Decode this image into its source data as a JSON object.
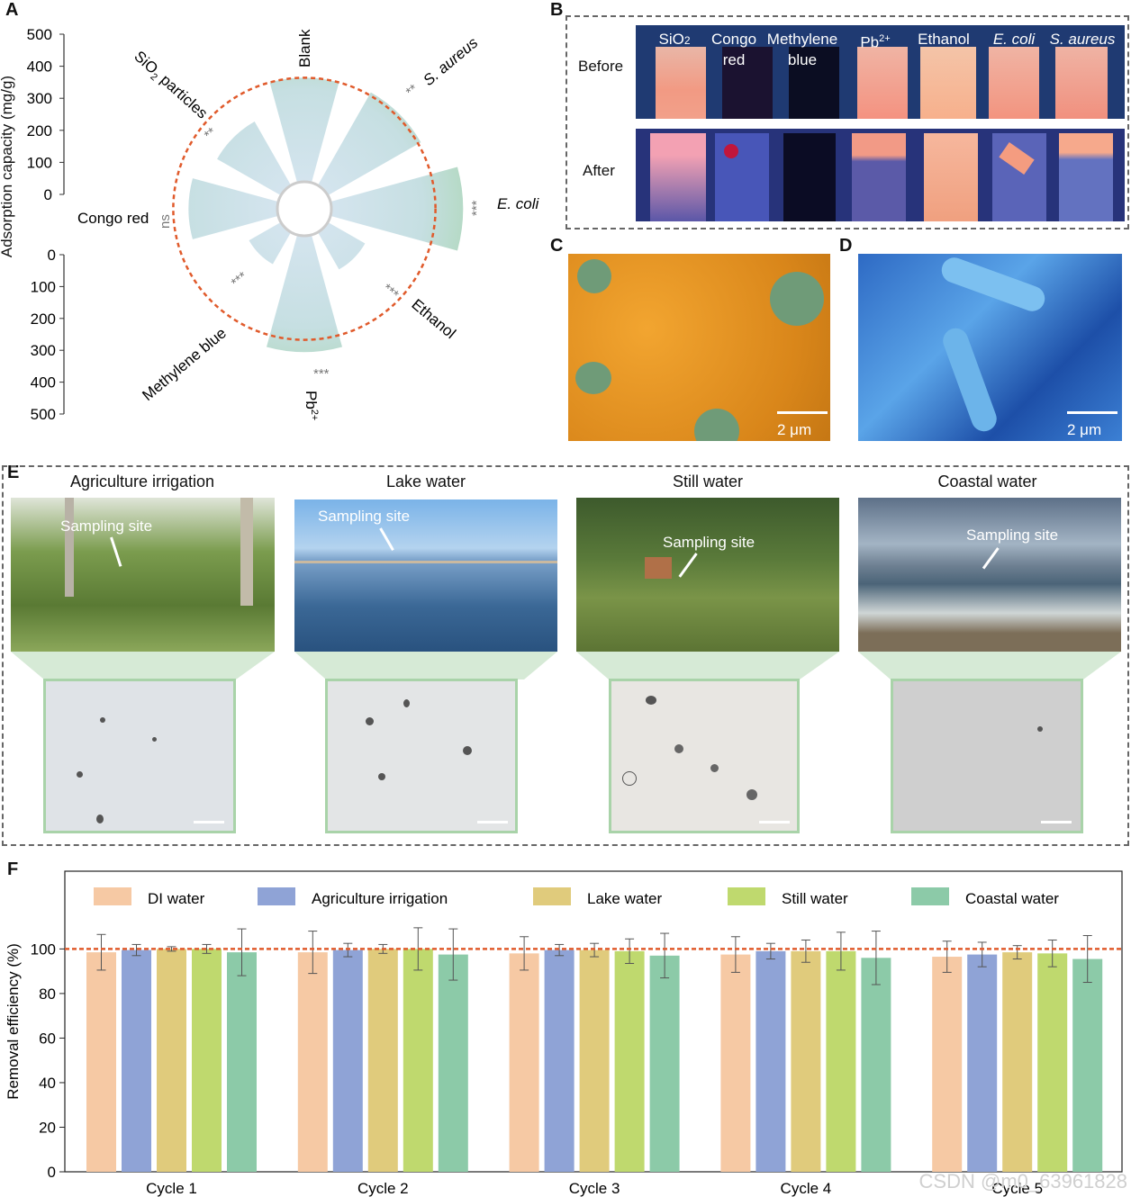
{
  "panels": {
    "A": {
      "label": "A",
      "ylabel": "Adsorption capacity (mg/g)",
      "upper_ticks": [
        "500",
        "400",
        "300",
        "200",
        "100",
        "0"
      ],
      "lower_ticks": [
        "0",
        "100",
        "200",
        "300",
        "400",
        "500"
      ],
      "categories": [
        "Blank",
        "S. aureus",
        "E. coli",
        "Ethanol",
        "Pb2+",
        "Methylene blue",
        "Congo red",
        "SiO2 particles"
      ],
      "label_blank": "Blank",
      "label_saureus": "S. aureus",
      "label_ecoli": "E. coli",
      "label_ethanol": "Ethanol",
      "label_pb": "Pb",
      "label_pb_sup": "2+",
      "label_mb": "Methylene blue",
      "label_congo": "Congo red",
      "label_sio2": "SiO",
      "label_sio2_sub": "2",
      "label_sio2_rest": " particles",
      "sig_saureus": "**",
      "sig_ecoli": "***",
      "sig_ethanol": "***",
      "sig_pb": "***",
      "sig_mb": "***",
      "sig_congo": "ns",
      "sig_sio2": "**"
    },
    "B": {
      "label": "B",
      "row_before": "Before",
      "row_after": "After",
      "vials": [
        {
          "name": "SiO",
          "sub": "2"
        },
        {
          "name": "Congo red"
        },
        {
          "name": "Methylene blue"
        },
        {
          "name": "Pb",
          "sup": "2+"
        },
        {
          "name": "Ethanol"
        },
        {
          "name": "E. coli"
        },
        {
          "name": "S. aureus"
        }
      ]
    },
    "C": {
      "label": "C",
      "scale": "2 μm"
    },
    "D": {
      "label": "D",
      "scale": "2 μm"
    },
    "E": {
      "label": "E",
      "sites": [
        {
          "title": "Agriculture irrigation",
          "marker": "Sampling site"
        },
        {
          "title": "Lake water",
          "marker": "Sampling site"
        },
        {
          "title": "Still water",
          "marker": "Sampling site"
        },
        {
          "title": "Coastal water",
          "marker": "Sampling site"
        }
      ]
    },
    "F": {
      "label": "F"
    }
  },
  "chart_data": [
    {
      "type": "bar",
      "panel": "A",
      "polar": true,
      "categories": [
        "Blank",
        "S. aureus",
        "E. coli",
        "Ethanol",
        "Pb2+",
        "Methylene blue",
        "Congo red",
        "SiO2 particles"
      ],
      "values": [
        340,
        350,
        430,
        140,
        380,
        120,
        290,
        240
      ],
      "ylim": [
        0,
        500
      ],
      "reference_circle": 340,
      "colors": {
        "bar": "#9fd39f",
        "inner": "#d8e6f2",
        "reference": "#e05a2b"
      }
    },
    {
      "type": "bar",
      "panel": "F",
      "categories": [
        "Cycle 1",
        "Cycle 2",
        "Cycle 3",
        "Cycle 4",
        "Cycle 5"
      ],
      "series": [
        {
          "name": "DI water",
          "color": "#f6c9a4",
          "values": [
            98.5,
            98.5,
            98,
            97.5,
            96.5
          ],
          "errors": [
            8,
            9.5,
            7.5,
            8,
            7
          ]
        },
        {
          "name": "Agriculture irrigation",
          "color": "#8fa3d6",
          "values": [
            99.5,
            99.5,
            99.5,
            99,
            97.5
          ],
          "errors": [
            2.5,
            3,
            2.5,
            3.5,
            5.5
          ]
        },
        {
          "name": "Lake water",
          "color": "#e0cb7c",
          "values": [
            100,
            100,
            99.5,
            99,
            98.5
          ],
          "errors": [
            1,
            2,
            3,
            5,
            3
          ]
        },
        {
          "name": "Still water",
          "color": "#bfd96e",
          "values": [
            100,
            100,
            99,
            99,
            98
          ],
          "errors": [
            2,
            9.5,
            5.5,
            8.5,
            6
          ]
        },
        {
          "name": "Coastal water",
          "color": "#8ccaa8",
          "values": [
            98.5,
            97.5,
            97,
            96,
            95.5
          ],
          "errors": [
            10.5,
            11.5,
            10,
            12,
            10.5
          ]
        }
      ],
      "ylabel": "Removal efficiency (%)",
      "yticks": [
        "0",
        "20",
        "40",
        "60",
        "80",
        "100"
      ],
      "ylim": [
        0,
        105
      ],
      "reference_line": 100,
      "reference_color": "#e05a2b",
      "legend_placement": "top"
    }
  ],
  "watermark": "CSDN @m0_63961828"
}
